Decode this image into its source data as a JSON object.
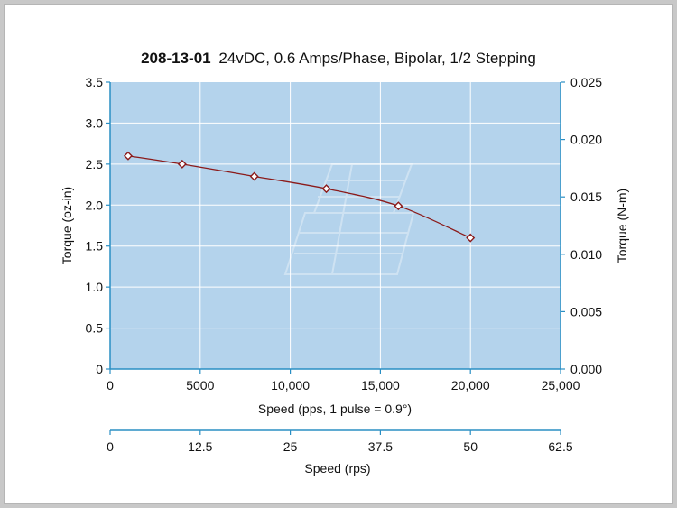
{
  "chart_data": {
    "type": "line",
    "title_bold": "208-13-01",
    "title_rest": "24vDC, 0.6 Amps/Phase, Bipolar, 1/2 Stepping",
    "xlabel": "Speed (pps, 1 pulse = 0.9°)",
    "ylabel": "Torque (oz-in)",
    "y2label": "Torque (N-m)",
    "x2label": "Speed (rps)",
    "xlim": [
      0,
      25000
    ],
    "ylim": [
      0,
      3.5
    ],
    "y2lim": [
      0,
      0.025
    ],
    "x2lim": [
      0,
      62.5
    ],
    "x_ticks": [
      0,
      5000,
      10000,
      15000,
      20000,
      25000
    ],
    "x_tick_labels": [
      "0",
      "5000",
      "10,000",
      "15,000",
      "20,000",
      "25,000"
    ],
    "y_ticks": [
      0,
      0.5,
      1.0,
      1.5,
      2.0,
      2.5,
      3.0,
      3.5
    ],
    "y_tick_labels": [
      "0",
      "0.5",
      "1.0",
      "1.5",
      "2.0",
      "2.5",
      "3.0",
      "3.5"
    ],
    "y2_ticks": [
      0,
      0.005,
      0.01,
      0.015,
      0.02,
      0.025
    ],
    "y2_tick_labels": [
      "0.000",
      "0.005",
      "0.010",
      "0.015",
      "0.020",
      "0.025"
    ],
    "x2_ticks": [
      0,
      12.5,
      25,
      37.5,
      50,
      62.5
    ],
    "x2_tick_labels": [
      "0",
      "12.5",
      "25",
      "37.5",
      "50",
      "62.5"
    ],
    "grid": true,
    "series": [
      {
        "name": "Torque",
        "x": [
          1000,
          4000,
          8000,
          12000,
          16000,
          20000
        ],
        "y": [
          2.6,
          2.5,
          2.35,
          2.2,
          1.99,
          1.6
        ]
      }
    ],
    "colors": {
      "plot_bg": "#b4d3ec",
      "grid": "#ffffff",
      "axis": "#2a8fc4",
      "line": "#8b1a1a",
      "marker_fill": "#ffffff"
    }
  }
}
